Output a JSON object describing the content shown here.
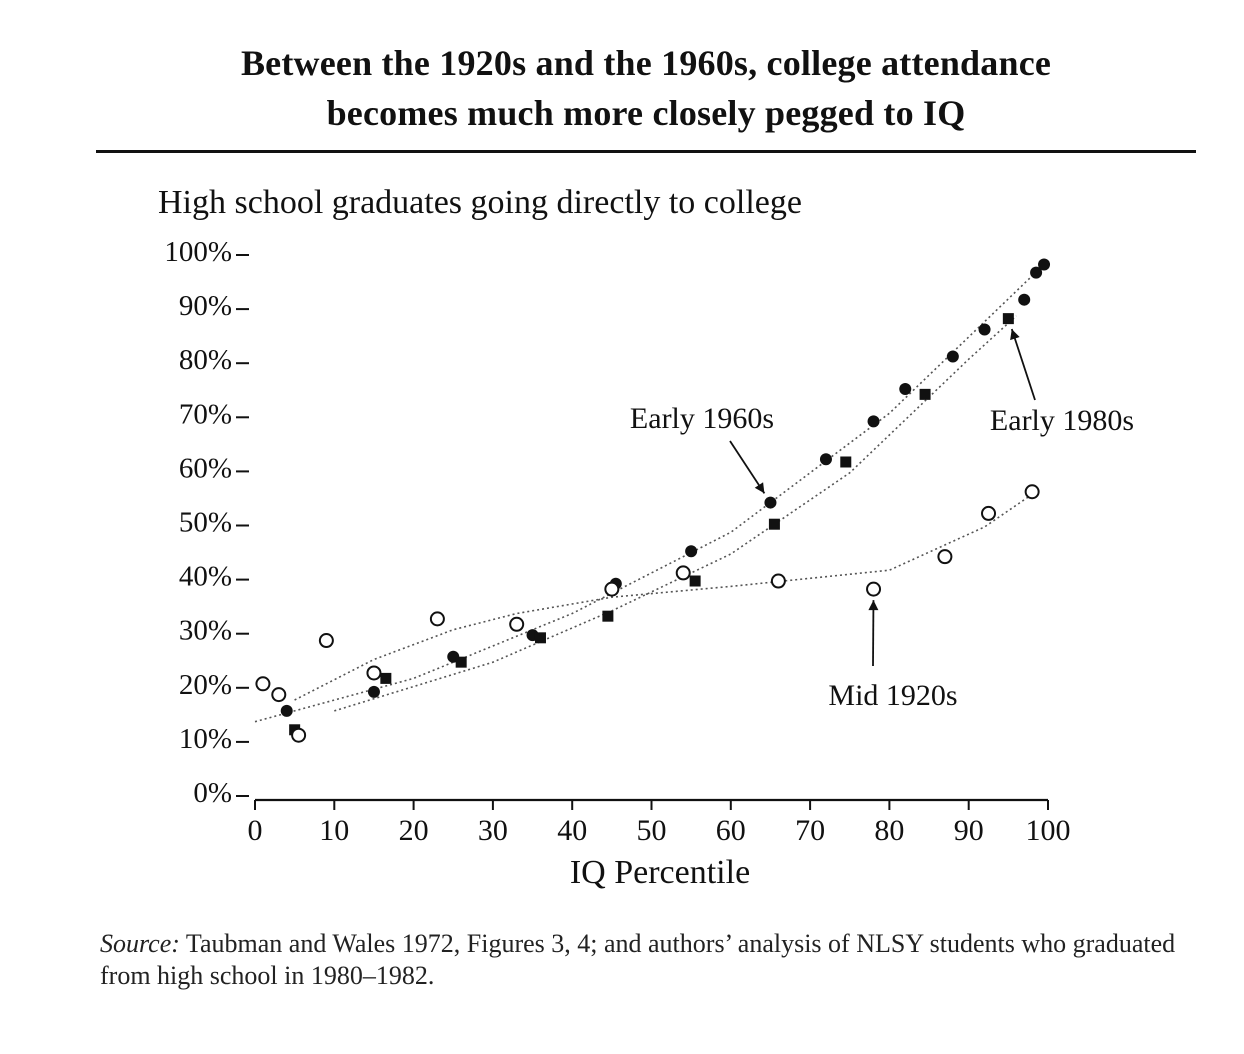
{
  "header": {
    "title_line1": "Between the 1920s and the 1960s, college attendance",
    "title_line2": "becomes much more closely pegged to IQ"
  },
  "chart_data": {
    "type": "scatter",
    "title": "High school graduates going directly to college",
    "xlabel": "IQ Percentile",
    "ylabel": "",
    "xlim": [
      0,
      100
    ],
    "ylim": [
      0,
      100
    ],
    "x_ticks": [
      "0",
      "10",
      "20",
      "30",
      "40",
      "50",
      "60",
      "70",
      "80",
      "90",
      "100"
    ],
    "y_ticks": [
      "0%",
      "10%",
      "20%",
      "30%",
      "40%",
      "50%",
      "60%",
      "70%",
      "80%",
      "90%",
      "100%"
    ],
    "grid": false,
    "series": [
      {
        "name": "Early 1960s",
        "marker": "filled-circle",
        "points": [
          [
            4,
            15
          ],
          [
            15,
            18.5
          ],
          [
            25,
            25
          ],
          [
            35,
            29
          ],
          [
            45.5,
            38.5
          ],
          [
            55,
            44.5
          ],
          [
            65,
            53.5
          ],
          [
            72,
            61.5
          ],
          [
            78,
            68.5
          ],
          [
            82,
            74.5
          ],
          [
            88,
            80.5
          ],
          [
            92,
            85.5
          ],
          [
            97,
            91
          ],
          [
            98.5,
            96
          ],
          [
            99.5,
            97.5
          ]
        ],
        "fit": [
          [
            0,
            13
          ],
          [
            20,
            21
          ],
          [
            40,
            33
          ],
          [
            60,
            48
          ],
          [
            80,
            70
          ],
          [
            99.5,
            97.5
          ]
        ]
      },
      {
        "name": "Early 1980s",
        "marker": "filled-square",
        "points": [
          [
            5,
            11.5
          ],
          [
            16.5,
            21
          ],
          [
            26,
            24
          ],
          [
            36,
            28.5
          ],
          [
            44.5,
            32.5
          ],
          [
            55.5,
            39
          ],
          [
            65.5,
            49.5
          ],
          [
            74.5,
            61
          ],
          [
            84.5,
            73.5
          ],
          [
            95,
            87.5
          ]
        ],
        "fit": [
          [
            10,
            15
          ],
          [
            30,
            24
          ],
          [
            45,
            33.5
          ],
          [
            60,
            44
          ],
          [
            75,
            59
          ],
          [
            90,
            80
          ],
          [
            96,
            88
          ]
        ]
      },
      {
        "name": "Mid 1920s",
        "marker": "open-circle",
        "points": [
          [
            1,
            20
          ],
          [
            3,
            18
          ],
          [
            5.5,
            10.5
          ],
          [
            9,
            28
          ],
          [
            15,
            22
          ],
          [
            23,
            32
          ],
          [
            33,
            31
          ],
          [
            45,
            37.5
          ],
          [
            54,
            40.5
          ],
          [
            66,
            39
          ],
          [
            78,
            37.5
          ],
          [
            87,
            43.5
          ],
          [
            92.5,
            51.5
          ],
          [
            98,
            55.5
          ]
        ],
        "fit": [
          [
            5,
            17
          ],
          [
            15,
            24.5
          ],
          [
            25,
            30
          ],
          [
            33,
            33
          ],
          [
            45,
            36
          ],
          [
            60,
            38
          ],
          [
            80,
            41
          ],
          [
            92,
            49
          ],
          [
            98,
            55
          ]
        ]
      }
    ],
    "annotations": [
      {
        "text": "Early 1960s",
        "target": [
          65,
          53.5
        ]
      },
      {
        "text": "Early 1980s",
        "target": [
          95,
          87.5
        ]
      },
      {
        "text": "Mid 1920s",
        "target": [
          78,
          37.5
        ]
      }
    ]
  },
  "footer": {
    "source_label": "Source:",
    "source_text": " Taubman and Wales 1972, Figures 3, 4; and authors’ analysis of NLSY students who graduated from high school in 1980–1982."
  }
}
